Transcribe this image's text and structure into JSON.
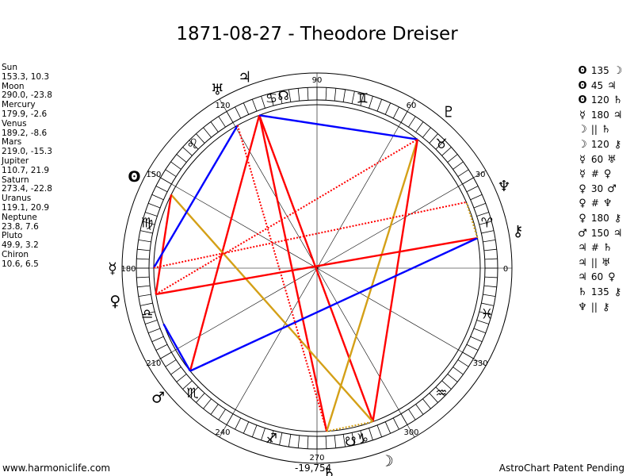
{
  "title": "1871-08-27 - Theodore Dreiser",
  "planets": [
    {
      "name": "Sun",
      "coords": "153.3, 10.3",
      "lon": 153.3,
      "glyph": "ʘ",
      "color": "#000000"
    },
    {
      "name": "Moon",
      "coords": "290.0, -23.8",
      "lon": 290.0,
      "glyph": "☽",
      "color": "#000000"
    },
    {
      "name": "Mercury",
      "coords": "179.9, -2.6",
      "lon": 179.9,
      "glyph": "☿",
      "color": "#000000"
    },
    {
      "name": "Venus",
      "coords": "189.2, -8.6",
      "lon": 189.2,
      "glyph": "♀",
      "color": "#000000"
    },
    {
      "name": "Mars",
      "coords": "219.0, -15.3",
      "lon": 219.0,
      "glyph": "♂",
      "color": "#000000"
    },
    {
      "name": "Jupiter",
      "coords": "110.7, 21.9",
      "lon": 110.7,
      "glyph": "♃",
      "color": "#000000"
    },
    {
      "name": "Saturn",
      "coords": "273.4, -22.8",
      "lon": 273.4,
      "glyph": "♄",
      "color": "#000000"
    },
    {
      "name": "Uranus",
      "coords": "119.1, 20.9",
      "lon": 119.1,
      "glyph": "♅",
      "color": "#000000"
    },
    {
      "name": "Neptune",
      "coords": "23.8, 7.6",
      "lon": 23.8,
      "glyph": "♆",
      "color": "#000000"
    },
    {
      "name": "Pluto",
      "coords": "49.9, 3.2",
      "lon": 49.9,
      "glyph": "♇",
      "color": "#000000"
    },
    {
      "name": "Chiron",
      "coords": "10.6, 6.5",
      "lon": 10.6,
      "glyph": "⚷",
      "color": "#000000"
    }
  ],
  "node_glyphs": [
    {
      "glyph": "☊",
      "lon": 101
    },
    {
      "glyph": "☋",
      "lon": 281
    }
  ],
  "zodiac_signs": [
    {
      "glyph": "♈",
      "lon": 15
    },
    {
      "glyph": "♉",
      "lon": 45
    },
    {
      "glyph": "♊",
      "lon": 75
    },
    {
      "glyph": "♋",
      "lon": 105
    },
    {
      "glyph": "♌",
      "lon": 135
    },
    {
      "glyph": "♍",
      "lon": 165
    },
    {
      "glyph": "♎",
      "lon": 195
    },
    {
      "glyph": "♏",
      "lon": 225
    },
    {
      "glyph": "♐",
      "lon": 255
    },
    {
      "glyph": "♑",
      "lon": 285
    },
    {
      "glyph": "♒",
      "lon": 315
    },
    {
      "glyph": "♓",
      "lon": 345
    }
  ],
  "degree_labels": [
    "0",
    "30",
    "60",
    "90",
    "120",
    "150",
    "180",
    "210",
    "240",
    "270",
    "300",
    "330"
  ],
  "aspect_list": [
    {
      "p1": "ʘ",
      "asp": "135",
      "p2": "☽"
    },
    {
      "p1": "ʘ",
      "asp": "45",
      "p2": "♃"
    },
    {
      "p1": "ʘ",
      "asp": "120",
      "p2": "♄"
    },
    {
      "p1": "☿",
      "asp": "180",
      "p2": "♃"
    },
    {
      "p1": "☽",
      "asp": "||",
      "p2": "♄"
    },
    {
      "p1": "☽",
      "asp": "120",
      "p2": "⚷"
    },
    {
      "p1": "☿",
      "asp": "60",
      "p2": "♅"
    },
    {
      "p1": "☿",
      "asp": "#",
      "p2": "♀"
    },
    {
      "p1": "♀",
      "asp": "30",
      "p2": "♂"
    },
    {
      "p1": "♀",
      "asp": "#",
      "p2": "♆"
    },
    {
      "p1": "♀",
      "asp": "180",
      "p2": "⚷"
    },
    {
      "p1": "♂",
      "asp": "150",
      "p2": "♃"
    },
    {
      "p1": "♃",
      "asp": "#",
      "p2": "♄"
    },
    {
      "p1": "♃",
      "asp": "||",
      "p2": "♅"
    },
    {
      "p1": "♃",
      "asp": "60",
      "p2": "♀"
    },
    {
      "p1": "♄",
      "asp": "135",
      "p2": "⚷"
    },
    {
      "p1": "♆",
      "asp": "||",
      "p2": "⚷"
    }
  ],
  "aspect_lines": [
    {
      "from": 110.7,
      "to": 290.0,
      "color": "#ff0000",
      "style": "solid"
    },
    {
      "from": 110.7,
      "to": 273.4,
      "color": "#ff0000",
      "style": "solid"
    },
    {
      "from": 110.7,
      "to": 219.0,
      "color": "#ff0000",
      "style": "solid"
    },
    {
      "from": 110.7,
      "to": 52.0,
      "color": "#0000ff",
      "style": "solid"
    },
    {
      "from": 52.0,
      "to": 273.4,
      "color": "#d4a017",
      "style": "solid"
    },
    {
      "from": 52.0,
      "to": 290.0,
      "color": "#ff0000",
      "style": "solid"
    },
    {
      "from": 153.3,
      "to": 290.0,
      "color": "#d4a017",
      "style": "solid"
    },
    {
      "from": 153.3,
      "to": 189.2,
      "color": "#ff0000",
      "style": "solid"
    },
    {
      "from": 189.2,
      "to": 10.6,
      "color": "#ff0000",
      "style": "solid"
    },
    {
      "from": 200.0,
      "to": 219.0,
      "color": "#0000ff",
      "style": "solid"
    },
    {
      "from": 219.0,
      "to": 10.6,
      "color": "#0000ff",
      "style": "solid"
    },
    {
      "from": 179.9,
      "to": 119.1,
      "color": "#0000ff",
      "style": "solid"
    },
    {
      "from": 179.9,
      "to": 23.8,
      "color": "#ff0000",
      "style": "dotted"
    },
    {
      "from": 189.2,
      "to": 52.0,
      "color": "#ff0000",
      "style": "dotted"
    },
    {
      "from": 119.1,
      "to": 273.4,
      "color": "#ff0000",
      "style": "dotted"
    },
    {
      "from": 273.4,
      "to": 290.0,
      "color": "#d4a017",
      "style": "dotted"
    },
    {
      "from": 10.6,
      "to": 23.8,
      "color": "#d4a017",
      "style": "dotted"
    }
  ],
  "footer": {
    "site": "www.harmoniclife.com",
    "score": "-19,754",
    "patent": "AstroChart Patent Pending"
  }
}
